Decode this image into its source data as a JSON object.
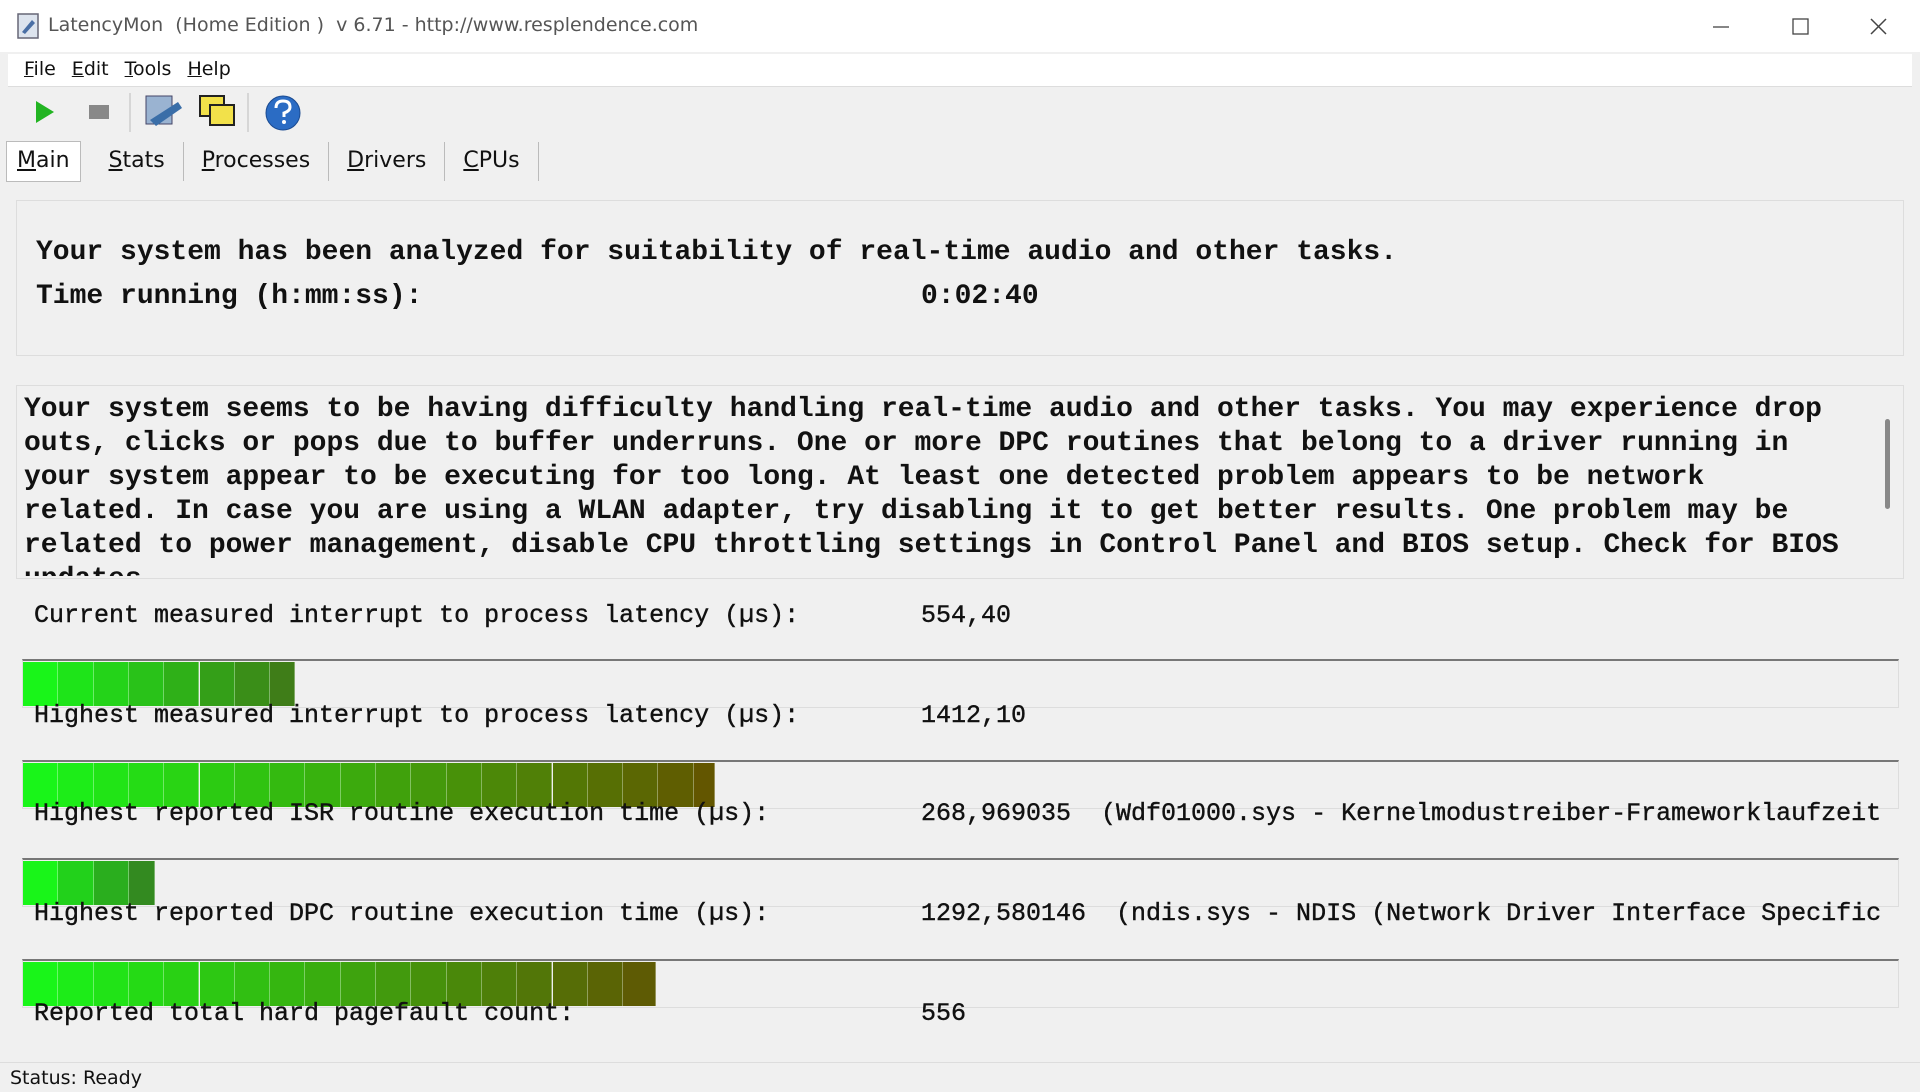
{
  "window": {
    "title": "LatencyMon  (Home Edition )  v 6.71 - http://www.resplendence.com"
  },
  "menu": [
    "File",
    "Edit",
    "Tools",
    "Help"
  ],
  "tabs": [
    "Main",
    "Stats",
    "Processes",
    "Drivers",
    "CPUs"
  ],
  "summary": {
    "headline": "Your system has been analyzed for suitability of real-time audio and other tasks.",
    "time_label": "Time running (h:mm:ss):",
    "time_value": "0:02:40"
  },
  "message": "Your system seems to be having difficulty handling real-time audio and other tasks. You may experience drop outs, clicks or pops due to buffer underruns. One or more DPC routines that belong to a driver running in your system appear to be executing for too long. At least one detected problem appears to be network related. In case you are using a WLAN adapter, try disabling it to get better results. One problem may be related to power management, disable CPU throttling settings in Control Panel and BIOS setup. Check for BIOS updates",
  "metrics": [
    {
      "label": "Current measured interrupt to process latency (µs):",
      "value": "554,40"
    },
    {
      "label": "Highest measured interrupt to process latency (µs):",
      "value": "1412,10"
    },
    {
      "label": "Highest reported ISR routine execution time (µs):",
      "value": "268,969035",
      "detail": "(Wdf01000.sys - Kernelmodustreiber-Frameworklaufzeit"
    },
    {
      "label": "Highest reported DPC routine execution time (µs):",
      "value": "1292,580146",
      "detail": "(ndis.sys - NDIS (Network Driver Interface Specific"
    },
    {
      "label": "Reported total hard pagefault count:",
      "value": "556"
    }
  ],
  "status": "Status: Ready"
}
